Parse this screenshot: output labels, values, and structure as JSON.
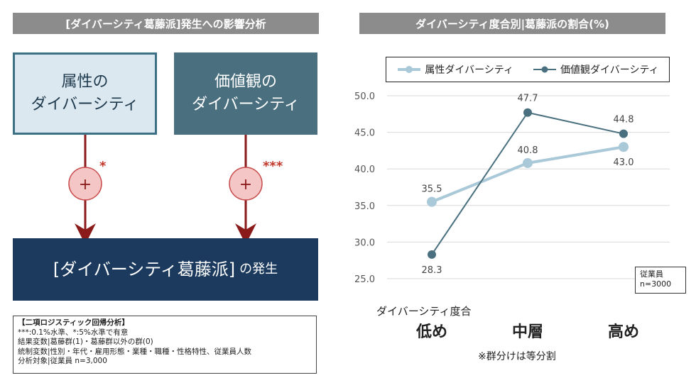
{
  "left_panel": {
    "header": "[ダイバーシティ葛藤派]発生への影響分析",
    "box_attribute": "属性の\nダイバーシティ",
    "box_value": "価値観の\nダイバーシティ",
    "sig_attribute": "*",
    "sig_value": "***",
    "plus_symbol": "+",
    "result_main": "[ダイバーシティ葛藤派]",
    "result_suffix": "の発生",
    "notes": {
      "title": "【二項ロジスティック回帰分析】",
      "lines": [
        "***:0.1%水準、*:5%水準で有意",
        "結果変数|葛藤群(1)・葛藤群以外の群(0)",
        "統制変数|性別・年代・雇用形態・業種・職種・性格特性、従業員人数",
        "分析対象|従業員 n=3,000"
      ]
    },
    "colors": {
      "arrow": "#8b1a1a",
      "plus_fill": "#f4c6c6",
      "plus_stroke": "#c94c4c",
      "sig": "#c0392b"
    }
  },
  "right_panel": {
    "header": "ダイバーシティ度合別|葛藤派の割合(%)",
    "x_title": "ダイバーシティ度合",
    "x_note": "※群分けは等分割",
    "n_note": "従業員\nn=3000"
  },
  "chart_data": {
    "type": "line",
    "categories": [
      "低め",
      "中層",
      "高め"
    ],
    "series": [
      {
        "name": "属性ダイバーシティ",
        "values": [
          35.5,
          40.8,
          43.0
        ],
        "color": "#a9c8d8"
      },
      {
        "name": "価値観ダイバーシティ",
        "values": [
          28.3,
          47.7,
          44.8
        ],
        "color": "#4a7080"
      }
    ],
    "ylim": [
      25.0,
      50.0
    ],
    "yticks": [
      "50.0",
      "45.0",
      "40.0",
      "35.0",
      "30.0",
      "25.0"
    ],
    "grid": true,
    "legend": "top"
  }
}
